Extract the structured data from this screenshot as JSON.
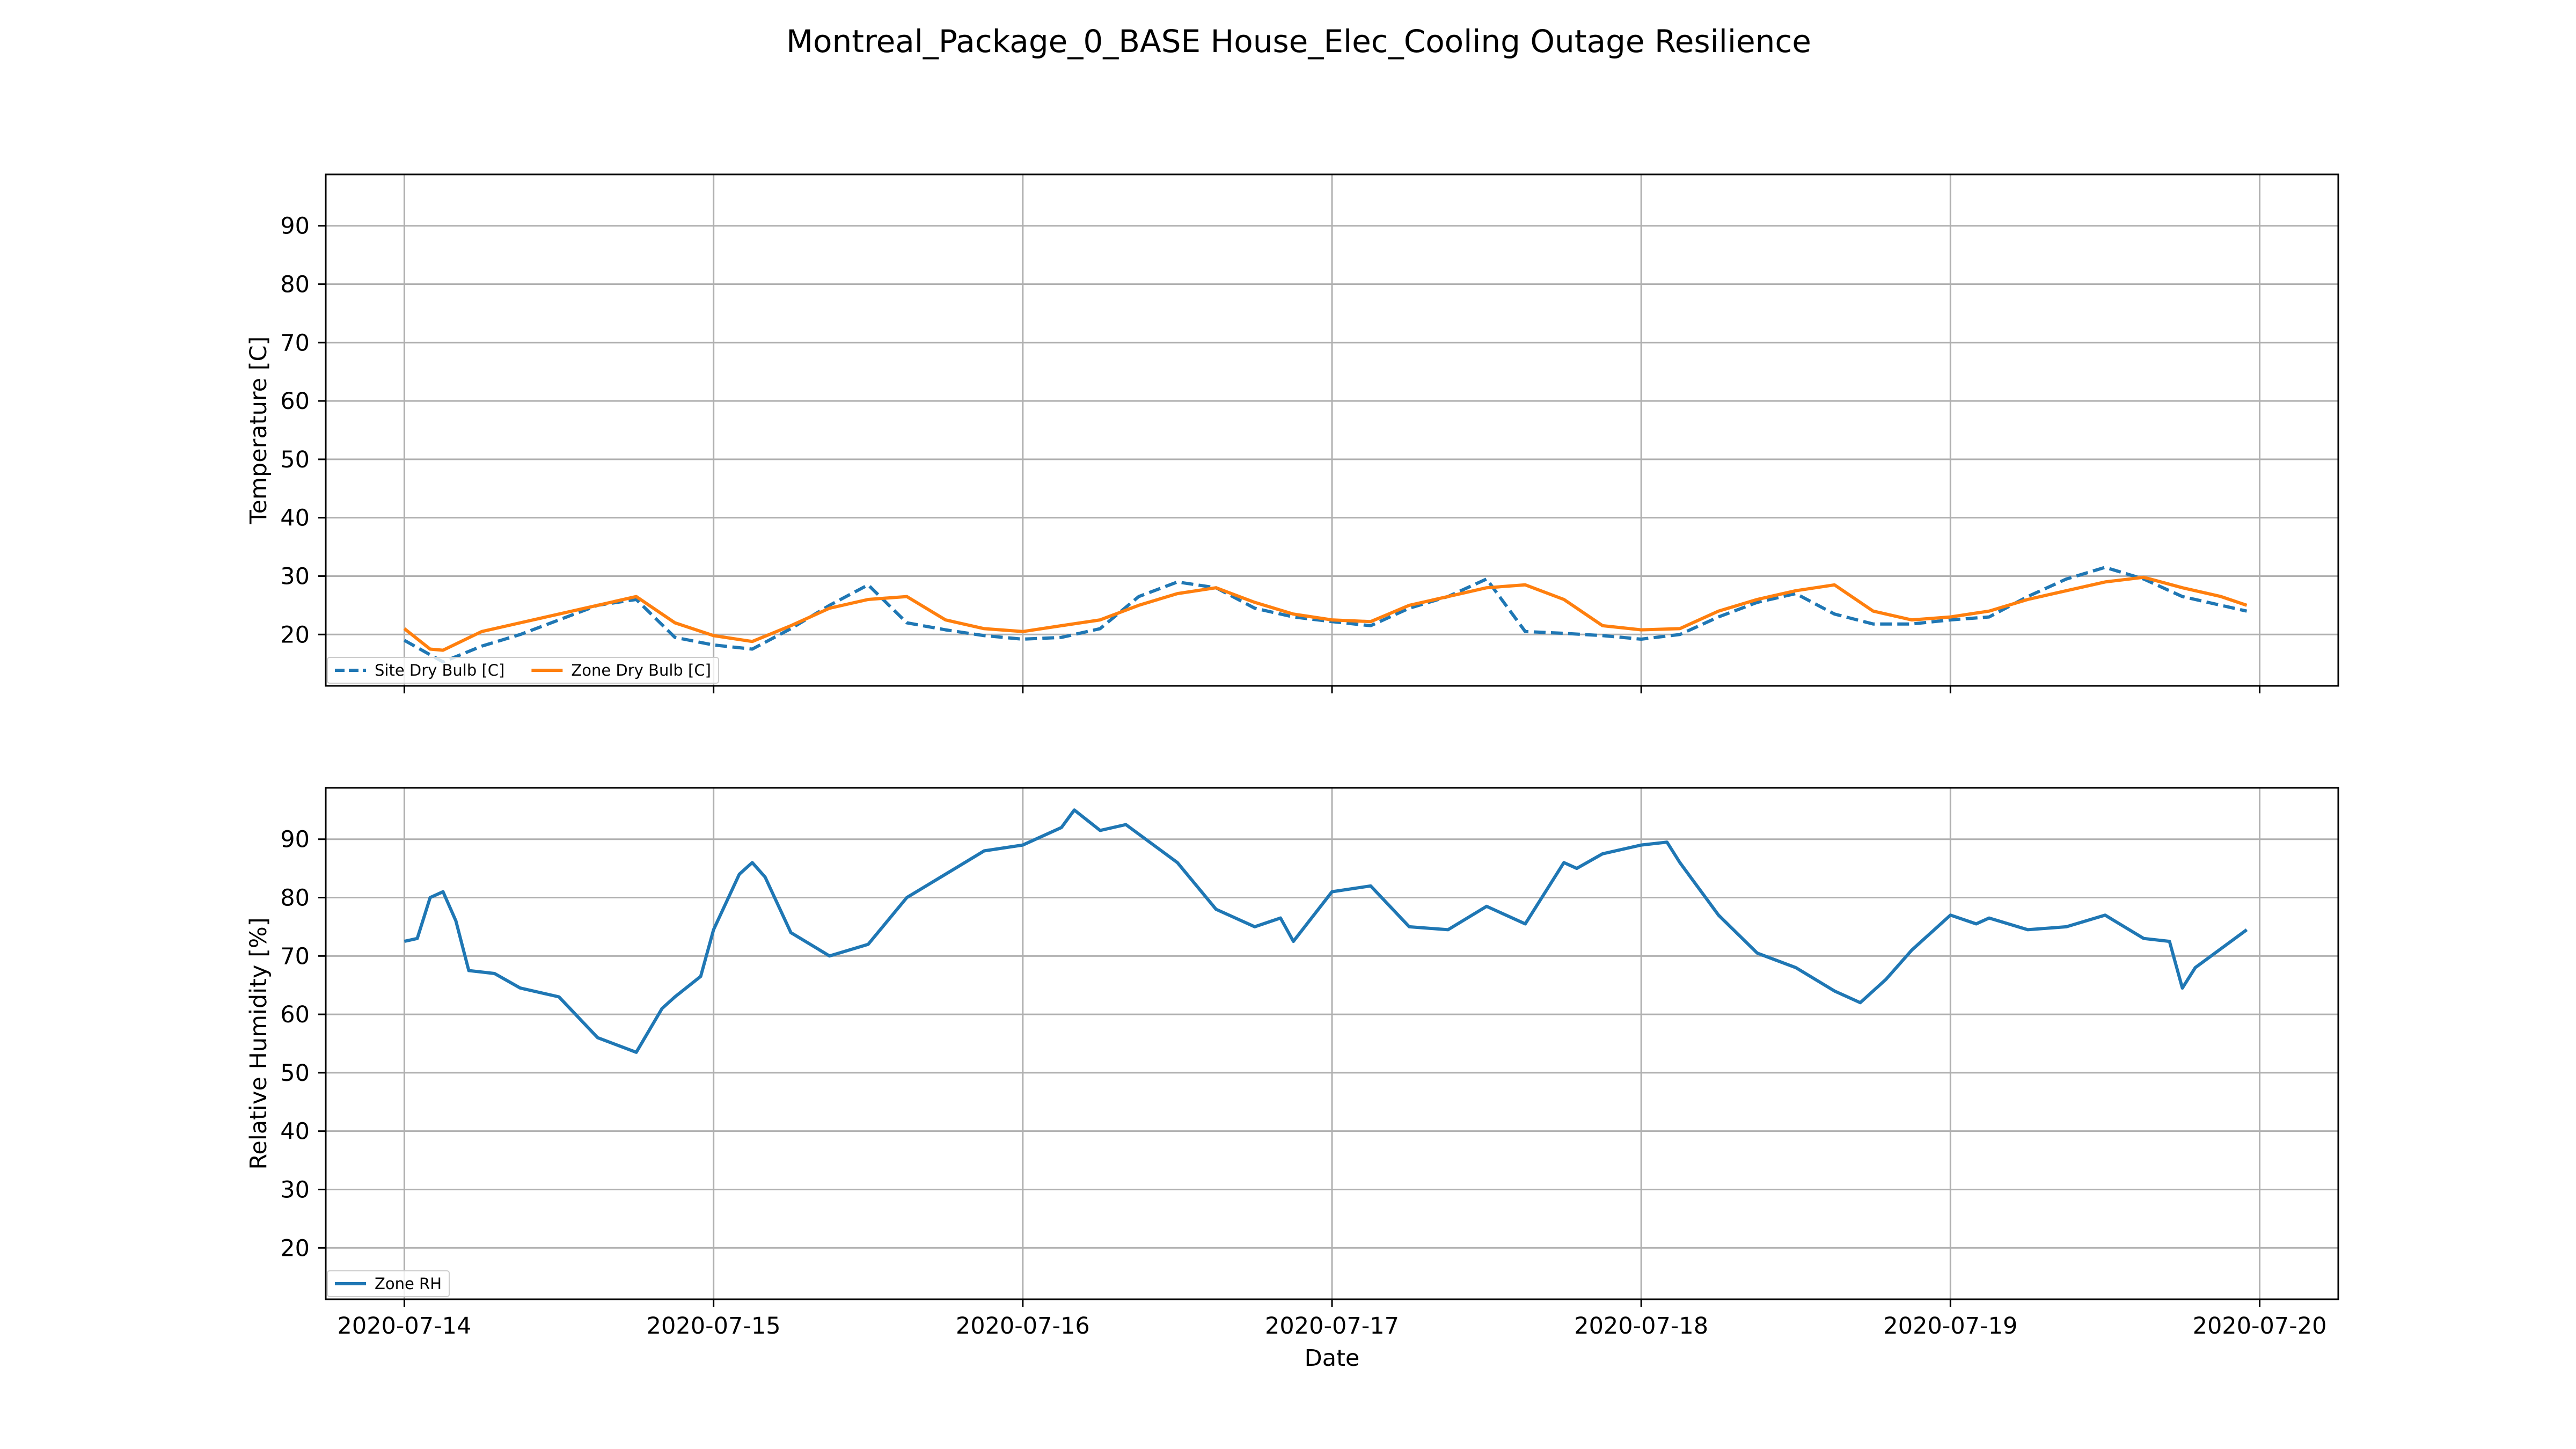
{
  "title": "Montreal_Package_0_BASE House_Elec_Cooling Outage Resilience",
  "colors": {
    "site": "#1f77b4",
    "zone": "#ff7f0e",
    "rh": "#1f77b4",
    "grid": "#b0b0b0"
  },
  "chart_data": [
    {
      "type": "line",
      "ylabel": "Temperature [C]",
      "ylim": [
        11.2,
        98.8
      ],
      "yticks": [
        20,
        30,
        40,
        50,
        60,
        70,
        80,
        90
      ],
      "xlim": [
        "2020-07-13 17:54",
        "2020-07-20 06:06"
      ],
      "xticks": [
        "2020-07-14",
        "2020-07-15",
        "2020-07-16",
        "2020-07-17",
        "2020-07-18",
        "2020-07-19",
        "2020-07-20"
      ],
      "grid": true,
      "legend": "lower-left",
      "series": [
        {
          "name": "Site Dry Bulb [C]",
          "style": "dashed",
          "x": [
            "2020-07-14 00:00",
            "2020-07-14 03:00",
            "2020-07-14 06:00",
            "2020-07-14 09:00",
            "2020-07-14 12:00",
            "2020-07-14 15:00",
            "2020-07-14 18:00",
            "2020-07-14 21:00",
            "2020-07-15 00:00",
            "2020-07-15 03:00",
            "2020-07-15 06:00",
            "2020-07-15 09:00",
            "2020-07-15 12:00",
            "2020-07-15 15:00",
            "2020-07-15 18:00",
            "2020-07-15 21:00",
            "2020-07-16 00:00",
            "2020-07-16 03:00",
            "2020-07-16 06:00",
            "2020-07-16 09:00",
            "2020-07-16 12:00",
            "2020-07-16 15:00",
            "2020-07-16 18:00",
            "2020-07-16 21:00",
            "2020-07-17 00:00",
            "2020-07-17 03:00",
            "2020-07-17 06:00",
            "2020-07-17 09:00",
            "2020-07-17 12:00",
            "2020-07-17 15:00",
            "2020-07-17 18:00",
            "2020-07-17 21:00",
            "2020-07-18 00:00",
            "2020-07-18 03:00",
            "2020-07-18 06:00",
            "2020-07-18 09:00",
            "2020-07-18 12:00",
            "2020-07-18 15:00",
            "2020-07-18 18:00",
            "2020-07-18 21:00",
            "2020-07-19 00:00",
            "2020-07-19 03:00",
            "2020-07-19 06:00",
            "2020-07-19 09:00",
            "2020-07-19 12:00",
            "2020-07-19 15:00",
            "2020-07-19 18:00",
            "2020-07-19 21:00",
            "2020-07-19 23:00"
          ],
          "y": [
            19.0,
            15.3,
            18.0,
            20.0,
            22.5,
            25.0,
            26.0,
            19.5,
            18.2,
            17.5,
            21.0,
            25.0,
            28.5,
            22.0,
            20.8,
            19.8,
            19.2,
            19.5,
            21.0,
            26.5,
            29.0,
            28.0,
            24.5,
            23.0,
            22.2,
            21.5,
            24.5,
            26.5,
            29.5,
            20.5,
            20.2,
            19.8,
            19.2,
            20.0,
            23.0,
            25.5,
            27.0,
            23.5,
            21.8,
            21.8,
            22.5,
            23.0,
            26.5,
            29.5,
            31.5,
            29.5,
            26.5,
            25.0,
            24.0
          ]
        },
        {
          "name": "Zone Dry Bulb [C]",
          "style": "solid",
          "x": [
            "2020-07-14 00:00",
            "2020-07-14 02:00",
            "2020-07-14 03:00",
            "2020-07-14 06:00",
            "2020-07-14 09:00",
            "2020-07-14 12:00",
            "2020-07-14 15:00",
            "2020-07-14 18:00",
            "2020-07-14 21:00",
            "2020-07-15 00:00",
            "2020-07-15 03:00",
            "2020-07-15 06:00",
            "2020-07-15 09:00",
            "2020-07-15 12:00",
            "2020-07-15 15:00",
            "2020-07-15 18:00",
            "2020-07-15 21:00",
            "2020-07-16 00:00",
            "2020-07-16 03:00",
            "2020-07-16 06:00",
            "2020-07-16 09:00",
            "2020-07-16 12:00",
            "2020-07-16 15:00",
            "2020-07-16 18:00",
            "2020-07-16 21:00",
            "2020-07-17 00:00",
            "2020-07-17 03:00",
            "2020-07-17 06:00",
            "2020-07-17 09:00",
            "2020-07-17 12:00",
            "2020-07-17 15:00",
            "2020-07-17 18:00",
            "2020-07-17 21:00",
            "2020-07-18 00:00",
            "2020-07-18 03:00",
            "2020-07-18 06:00",
            "2020-07-18 09:00",
            "2020-07-18 12:00",
            "2020-07-18 15:00",
            "2020-07-18 18:00",
            "2020-07-18 21:00",
            "2020-07-19 00:00",
            "2020-07-19 03:00",
            "2020-07-19 06:00",
            "2020-07-19 09:00",
            "2020-07-19 12:00",
            "2020-07-19 15:00",
            "2020-07-19 18:00",
            "2020-07-19 21:00",
            "2020-07-19 23:00"
          ],
          "y": [
            21.0,
            17.5,
            17.3,
            20.5,
            22.0,
            23.5,
            25.0,
            26.5,
            22.0,
            19.8,
            18.8,
            21.5,
            24.5,
            26.0,
            26.5,
            22.5,
            21.0,
            20.5,
            21.5,
            22.5,
            25.0,
            27.0,
            28.0,
            25.5,
            23.5,
            22.5,
            22.2,
            25.0,
            26.5,
            28.0,
            28.5,
            26.0,
            21.5,
            20.8,
            21.0,
            24.0,
            26.0,
            27.5,
            28.5,
            24.0,
            22.5,
            23.0,
            24.0,
            26.0,
            27.5,
            29.0,
            29.8,
            28.0,
            26.5,
            25.0
          ]
        }
      ]
    },
    {
      "type": "line",
      "xlabel": "Date",
      "ylabel": "Relative Humidity [%]",
      "ylim": [
        11.2,
        98.8
      ],
      "yticks": [
        20,
        30,
        40,
        50,
        60,
        70,
        80,
        90
      ],
      "xlim": [
        "2020-07-13 17:54",
        "2020-07-20 06:06"
      ],
      "xticks": [
        "2020-07-14",
        "2020-07-15",
        "2020-07-16",
        "2020-07-17",
        "2020-07-18",
        "2020-07-19",
        "2020-07-20"
      ],
      "grid": true,
      "legend": "lower-left",
      "series": [
        {
          "name": "Zone RH",
          "style": "solid",
          "x": [
            "2020-07-14 00:00",
            "2020-07-14 01:00",
            "2020-07-14 02:00",
            "2020-07-14 03:00",
            "2020-07-14 04:00",
            "2020-07-14 05:00",
            "2020-07-14 07:00",
            "2020-07-14 09:00",
            "2020-07-14 12:00",
            "2020-07-14 15:00",
            "2020-07-14 18:00",
            "2020-07-14 20:00",
            "2020-07-14 21:00",
            "2020-07-14 23:00",
            "2020-07-15 00:00",
            "2020-07-15 02:00",
            "2020-07-15 03:00",
            "2020-07-15 04:00",
            "2020-07-15 06:00",
            "2020-07-15 09:00",
            "2020-07-15 12:00",
            "2020-07-15 15:00",
            "2020-07-15 18:00",
            "2020-07-15 21:00",
            "2020-07-16 00:00",
            "2020-07-16 03:00",
            "2020-07-16 04:00",
            "2020-07-16 06:00",
            "2020-07-16 08:00",
            "2020-07-16 12:00",
            "2020-07-16 15:00",
            "2020-07-16 18:00",
            "2020-07-16 20:00",
            "2020-07-16 21:00",
            "2020-07-17 00:00",
            "2020-07-17 03:00",
            "2020-07-17 06:00",
            "2020-07-17 09:00",
            "2020-07-17 12:00",
            "2020-07-17 15:00",
            "2020-07-17 18:00",
            "2020-07-17 19:00",
            "2020-07-17 21:00",
            "2020-07-18 00:00",
            "2020-07-18 02:00",
            "2020-07-18 03:00",
            "2020-07-18 06:00",
            "2020-07-18 09:00",
            "2020-07-18 12:00",
            "2020-07-18 15:00",
            "2020-07-18 17:00",
            "2020-07-18 19:00",
            "2020-07-18 21:00",
            "2020-07-19 00:00",
            "2020-07-19 02:00",
            "2020-07-19 03:00",
            "2020-07-19 06:00",
            "2020-07-19 09:00",
            "2020-07-19 12:00",
            "2020-07-19 15:00",
            "2020-07-19 17:00",
            "2020-07-19 18:00",
            "2020-07-19 19:00",
            "2020-07-19 23:00"
          ],
          "y": [
            72.5,
            73.0,
            80.0,
            81.0,
            76.0,
            67.5,
            67.0,
            64.5,
            63.0,
            56.0,
            53.5,
            61.0,
            63.0,
            66.5,
            74.5,
            84.0,
            86.0,
            83.5,
            74.0,
            70.0,
            72.0,
            80.0,
            84.0,
            88.0,
            89.0,
            92.0,
            95.0,
            91.5,
            92.5,
            86.0,
            78.0,
            75.0,
            76.5,
            72.5,
            81.0,
            82.0,
            75.0,
            74.5,
            78.5,
            75.5,
            86.0,
            85.0,
            87.5,
            89.0,
            89.5,
            86.0,
            77.0,
            70.5,
            68.0,
            64.0,
            62.0,
            66.0,
            71.0,
            77.0,
            75.5,
            76.5,
            74.5,
            75.0,
            77.0,
            73.0,
            72.5,
            64.5,
            68.0,
            74.5
          ]
        }
      ]
    }
  ]
}
